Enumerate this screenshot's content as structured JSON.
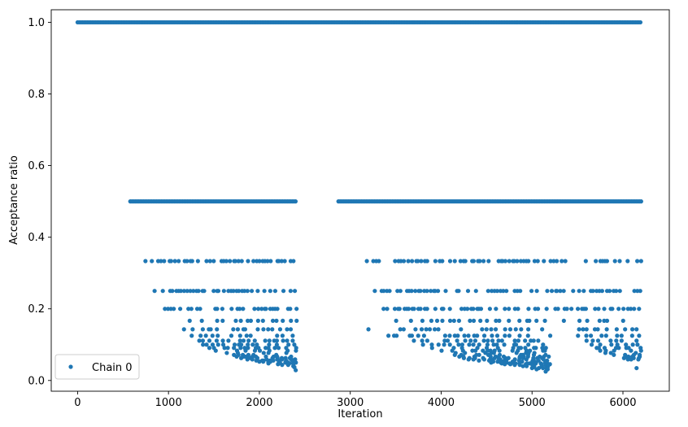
{
  "chart_data": {
    "type": "scatter",
    "xlabel": "Iteration",
    "ylabel": "Acceptance ratio",
    "xlim": [
      -290,
      6510
    ],
    "ylim": [
      -0.03,
      1.035
    ],
    "x_ticks": [
      0,
      1000,
      2000,
      3000,
      4000,
      5000,
      6000
    ],
    "y_ticks": [
      0.0,
      0.2,
      0.4,
      0.6,
      0.8,
      1.0
    ],
    "x_tick_labels": [
      "0",
      "1000",
      "2000",
      "3000",
      "4000",
      "5000",
      "6000"
    ],
    "y_tick_labels": [
      "0.0",
      "0.2",
      "0.4",
      "0.6",
      "0.8",
      "1.0"
    ],
    "legend": {
      "position": "lower-left",
      "entries": [
        "Chain 0"
      ]
    },
    "grid": false,
    "series": [
      {
        "name": "Chain 0",
        "color": "#1f77b4",
        "marker": "circle",
        "x_range": [
          0,
          6200
        ],
        "levels": [
          {
            "y": 1.0,
            "segments": [
              [
                0,
                6200
              ]
            ]
          },
          {
            "y": 0.5,
            "segments": [
              [
                580,
                2410
              ],
              [
                2870,
                6200
              ]
            ]
          },
          {
            "y": 0.3333,
            "segments": [
              [
                720,
                2410
              ],
              [
                3180,
                6200
              ]
            ]
          },
          {
            "y": 0.25,
            "segments": [
              [
                820,
                2410
              ],
              [
                3270,
                6200
              ]
            ]
          },
          {
            "y": 0.2,
            "segments": [
              [
                930,
                2410
              ],
              [
                3330,
                6200
              ]
            ]
          },
          {
            "y": 0.1667,
            "segments": [
              [
                1030,
                2410
              ],
              [
                3500,
                5200
              ],
              [
                5350,
                6200
              ]
            ]
          },
          {
            "y": 0.1429,
            "segments": [
              [
                1150,
                2410
              ],
              [
                3200,
                3200
              ],
              [
                3550,
                5200
              ],
              [
                5400,
                6200
              ]
            ]
          },
          {
            "y": 0.125,
            "segments": [
              [
                1250,
                2410
              ],
              [
                3420,
                5200
              ],
              [
                5500,
                6200
              ]
            ]
          },
          {
            "y": 0.1111,
            "segments": [
              [
                1330,
                2410
              ],
              [
                3700,
                5200
              ],
              [
                5600,
                6200
              ]
            ]
          },
          {
            "y": 0.1,
            "segments": [
              [
                1380,
                2410
              ],
              [
                3800,
                5200
              ],
              [
                5650,
                6200
              ]
            ]
          },
          {
            "y": 0.0909,
            "segments": [
              [
                1450,
                2410
              ],
              [
                3900,
                5200
              ],
              [
                5700,
                6200
              ]
            ]
          },
          {
            "y": 0.0833,
            "segments": [
              [
                1520,
                2410
              ],
              [
                4000,
                5200
              ],
              [
                5750,
                6200
              ]
            ]
          },
          {
            "y": 0.0769,
            "segments": [
              [
                1600,
                2410
              ],
              [
                4100,
                5200
              ],
              [
                5800,
                6200
              ]
            ]
          },
          {
            "y": 0.0714,
            "segments": [
              [
                1700,
                2410
              ],
              [
                4150,
                5200
              ],
              [
                5900,
                6200
              ]
            ]
          },
          {
            "y": 0.0667,
            "segments": [
              [
                1750,
                2410
              ],
              [
                4200,
                5200
              ],
              [
                5950,
                6200
              ]
            ]
          },
          {
            "y": 0.0625,
            "segments": [
              [
                1800,
                2410
              ],
              [
                4250,
                5200
              ],
              [
                6000,
                6200
              ]
            ]
          },
          {
            "y": 0.0588,
            "segments": [
              [
                1850,
                2410
              ],
              [
                4300,
                5200
              ],
              [
                6050,
                6200
              ]
            ]
          },
          {
            "y": 0.0556,
            "segments": [
              [
                1900,
                2410
              ],
              [
                4400,
                5200
              ]
            ]
          },
          {
            "y": 0.0526,
            "segments": [
              [
                1950,
                2410
              ],
              [
                4500,
                5200
              ]
            ]
          },
          {
            "y": 0.05,
            "segments": [
              [
                2000,
                2410
              ],
              [
                4550,
                5200
              ]
            ]
          },
          {
            "y": 0.0476,
            "segments": [
              [
                2100,
                2410
              ],
              [
                4600,
                5200
              ]
            ]
          },
          {
            "y": 0.0455,
            "segments": [
              [
                2200,
                2410
              ],
              [
                4700,
                5200
              ]
            ]
          },
          {
            "y": 0.0435,
            "segments": [
              [
                2250,
                2410
              ],
              [
                4800,
                5200
              ]
            ]
          },
          {
            "y": 0.04,
            "segments": [
              [
                2300,
                2410
              ],
              [
                4900,
                5200
              ]
            ]
          },
          {
            "y": 0.037,
            "segments": [
              [
                2330,
                2410
              ],
              [
                4950,
                5200
              ]
            ]
          },
          {
            "y": 0.0345,
            "segments": [
              [
                2360,
                2410
              ],
              [
                5000,
                5200
              ],
              [
                6150,
                6200
              ]
            ]
          },
          {
            "y": 0.0313,
            "segments": [
              [
                2380,
                2410
              ],
              [
                5050,
                5200
              ]
            ]
          },
          {
            "y": 0.0286,
            "segments": [
              [
                2400,
                2410
              ],
              [
                5100,
                5200
              ]
            ]
          },
          {
            "y": 0.025,
            "segments": [
              [
                5150,
                5200
              ]
            ]
          }
        ]
      }
    ]
  }
}
